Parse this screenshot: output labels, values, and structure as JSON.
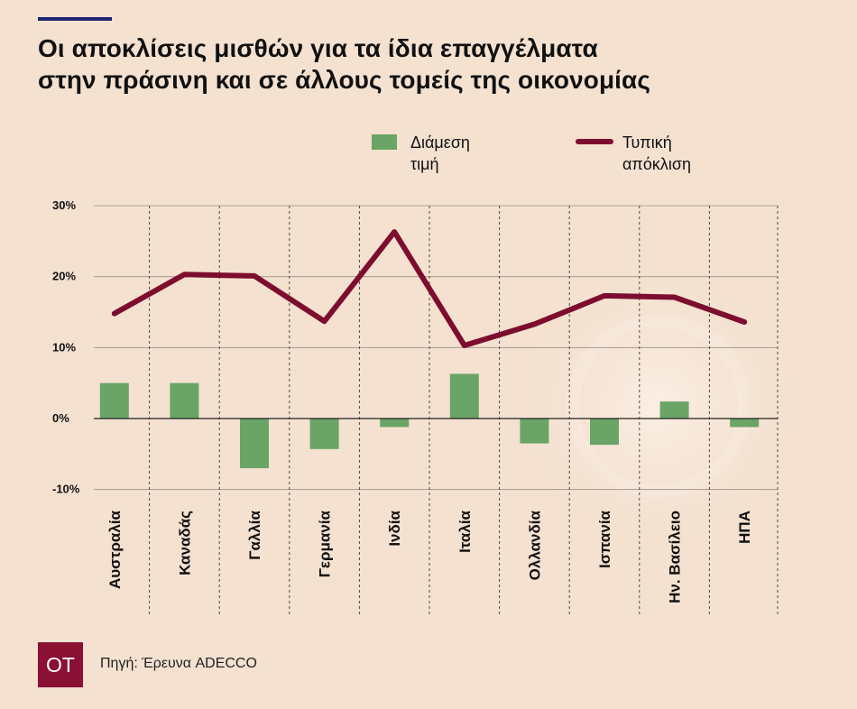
{
  "title_lines": [
    "Οι αποκλίσεις μισθών για τα ίδια επαγγέλματα",
    "στην πράσινη και σε άλλους τομείς της οικονομίας"
  ],
  "legend": {
    "median": "Διάμεση\nτιμή",
    "stddev": "Τυπική\nαπόκλιση"
  },
  "source": "Πηγή: Έρευνα ADECCO",
  "logo_text": "OT",
  "colors": {
    "bar": "#6aa466",
    "line": "#7d0d2e",
    "background": "#f4e1d0",
    "logo": "#8a1034",
    "accent_rule": "#1c2470"
  },
  "chart_data": {
    "type": "bar+line",
    "title": "Οι αποκλίσεις μισθών για τα ίδια επαγγέλματα στην πράσινη και σε άλλους τομείς της οικονομίας",
    "categories": [
      "Αυστραλία",
      "Καναδάς",
      "Γαλλία",
      "Γερμανία",
      "Ινδία",
      "Ιταλία",
      "Ολλανδία",
      "Ισπανία",
      "Ην. Βασίλειο",
      "ΗΠΑ"
    ],
    "series": [
      {
        "name": "Διάμεση τιμή",
        "type": "bar",
        "values": [
          5.0,
          5.0,
          -7.0,
          -4.3,
          -1.2,
          6.3,
          -3.5,
          -3.7,
          2.4,
          -1.2
        ]
      },
      {
        "name": "Τυπική απόκλιση",
        "type": "line",
        "values": [
          14.8,
          20.3,
          20.1,
          13.7,
          26.3,
          10.3,
          13.3,
          17.3,
          17.1,
          13.6
        ]
      }
    ],
    "y_ticks": [
      {
        "value": 30,
        "label": "30%"
      },
      {
        "value": 20,
        "label": "20%"
      },
      {
        "value": 10,
        "label": "10%"
      },
      {
        "value": 0,
        "label": "0%"
      },
      {
        "value": -10,
        "label": "-10%"
      }
    ],
    "ylim": [
      -10,
      30
    ],
    "grid": true,
    "legend_position": "top"
  }
}
